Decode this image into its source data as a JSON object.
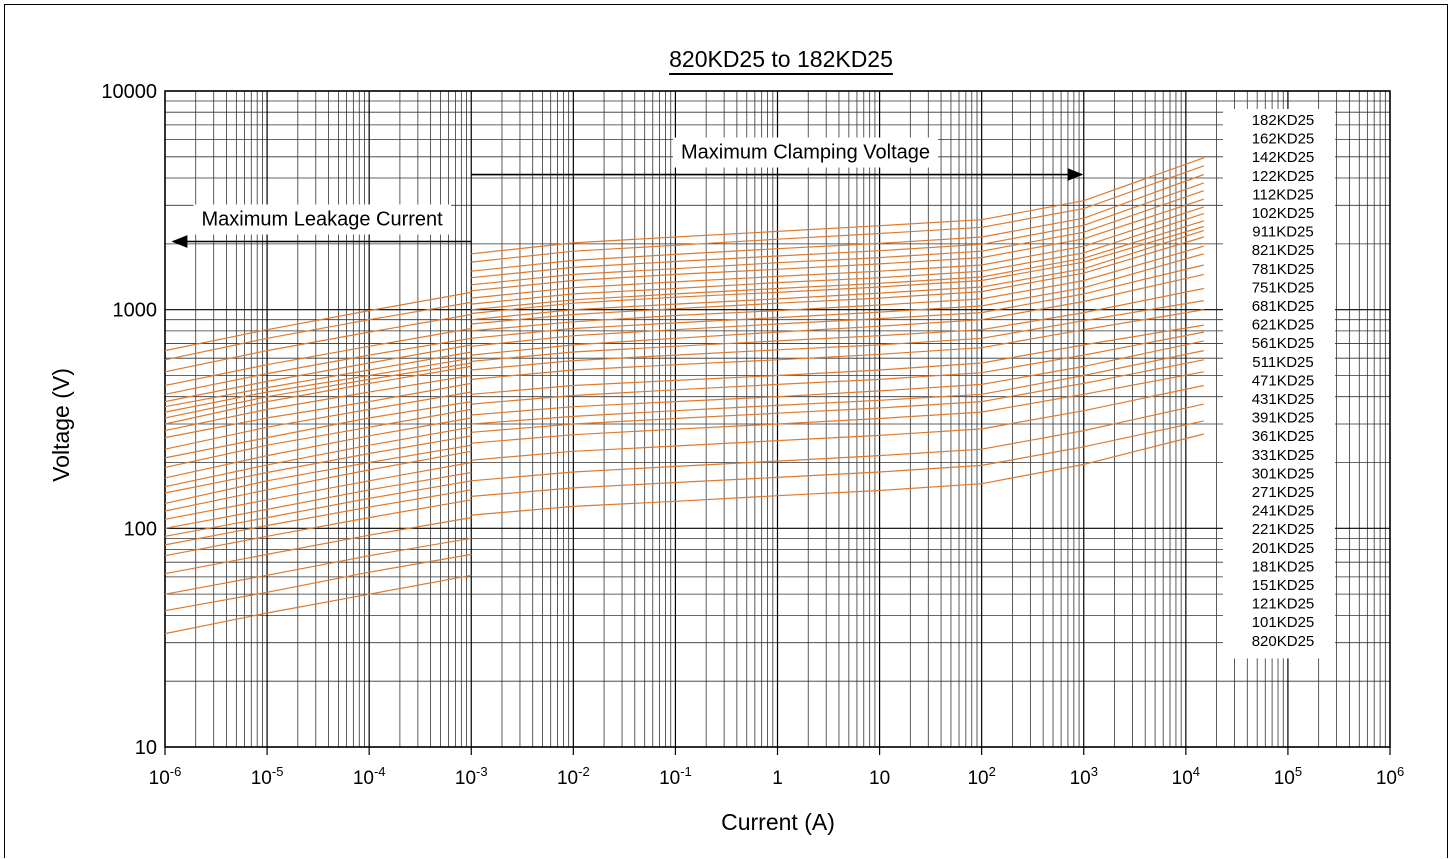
{
  "chart_data": {
    "type": "line",
    "title": "820KD25 to 182KD25",
    "xlabel": "Current (A)",
    "ylabel": "Voltage (V)",
    "x_scale": "log",
    "y_scale": "log",
    "xlim": [
      1e-06,
      1000000.0
    ],
    "ylim": [
      10,
      10000
    ],
    "grid": true,
    "legend_position": "right",
    "line_color": "#E07B2E",
    "x_ticks": [
      {
        "value": 1e-06,
        "base": "10",
        "exp": "-6"
      },
      {
        "value": 1e-05,
        "base": "10",
        "exp": "-5"
      },
      {
        "value": 0.0001,
        "base": "10",
        "exp": "-4"
      },
      {
        "value": 0.001,
        "base": "10",
        "exp": "-3"
      },
      {
        "value": 0.01,
        "base": "10",
        "exp": "-2"
      },
      {
        "value": 0.1,
        "base": "10",
        "exp": "-1"
      },
      {
        "value": 1,
        "base": "1",
        "exp": ""
      },
      {
        "value": 10,
        "base": "10",
        "exp": ""
      },
      {
        "value": 100,
        "base": "10",
        "exp": "2"
      },
      {
        "value": 1000,
        "base": "10",
        "exp": "3"
      },
      {
        "value": 10000,
        "base": "10",
        "exp": "4"
      },
      {
        "value": 100000,
        "base": "10",
        "exp": "5"
      },
      {
        "value": 1000000,
        "base": "10",
        "exp": "6"
      }
    ],
    "y_ticks": [
      {
        "value": 10,
        "label": "10"
      },
      {
        "value": 100,
        "label": "100"
      },
      {
        "value": 1000,
        "label": "1000"
      },
      {
        "value": 10000,
        "label": "10000"
      }
    ],
    "annotations": [
      {
        "text": "Maximum Leakage Current",
        "arrow_from": 0.001,
        "arrow_to": 1e-06,
        "arrow_v": 2050
      },
      {
        "text": "Maximum Clamping Voltage",
        "arrow_from": 0.001,
        "arrow_to": 1000,
        "arrow_v": 4150
      }
    ],
    "leakage_region_x": [
      1e-06,
      0.001
    ],
    "clamping_region_x": [
      0.001,
      15000
    ],
    "leakage_x": [
      1e-06,
      1e-05,
      0.0001,
      0.001
    ],
    "clamping_x": [
      0.001,
      0.01,
      0.1,
      1,
      10,
      100,
      1000,
      15000
    ],
    "series": [
      {
        "name": "182KD25",
        "leakage": [
          650,
          810,
          990,
          1200
        ],
        "clamping": [
          1800,
          2020,
          2150,
          2280,
          2420,
          2580,
          3150,
          4950
        ]
      },
      {
        "name": "162KD25",
        "leakage": [
          590,
          740,
          900,
          1080
        ],
        "clamping": [
          1650,
          1850,
          1970,
          2100,
          2230,
          2380,
          2900,
          4550
        ]
      },
      {
        "name": "142KD25",
        "leakage": [
          520,
          650,
          790,
          950
        ],
        "clamping": [
          1500,
          1680,
          1790,
          1900,
          2010,
          2150,
          2620,
          4150
        ]
      },
      {
        "name": "122KD25",
        "leakage": [
          450,
          560,
          680,
          820
        ],
        "clamping": [
          1400,
          1560,
          1660,
          1760,
          1860,
          1990,
          2430,
          3800
        ]
      },
      {
        "name": "112KD25",
        "leakage": [
          410,
          510,
          620,
          740
        ],
        "clamping": [
          1300,
          1450,
          1540,
          1640,
          1730,
          1850,
          2260,
          3500
        ]
      },
      {
        "name": "102KD25",
        "leakage": [
          380,
          470,
          570,
          690
        ],
        "clamping": [
          1220,
          1360,
          1450,
          1530,
          1620,
          1730,
          2110,
          3200
        ]
      },
      {
        "name": "911KD25",
        "leakage": [
          360,
          440,
          530,
          640
        ],
        "clamping": [
          1130,
          1260,
          1340,
          1420,
          1500,
          1600,
          1950,
          2950
        ]
      },
      {
        "name": "821KD25",
        "leakage": [
          340,
          420,
          500,
          600
        ],
        "clamping": [
          1060,
          1180,
          1250,
          1330,
          1400,
          1500,
          1820,
          2750
        ]
      },
      {
        "name": "781KD25",
        "leakage": [
          320,
          400,
          480,
          570
        ],
        "clamping": [
          1000,
          1110,
          1180,
          1250,
          1320,
          1410,
          1720,
          2550
        ]
      },
      {
        "name": "751KD25",
        "leakage": [
          300,
          380,
          460,
          550
        ],
        "clamping": [
          960,
          1070,
          1140,
          1200,
          1270,
          1360,
          1650,
          2400
        ]
      },
      {
        "name": "681KD25",
        "leakage": [
          280,
          350,
          420,
          500
        ],
        "clamping": [
          900,
          1000,
          1060,
          1120,
          1190,
          1270,
          1540,
          2300
        ]
      },
      {
        "name": "621KD25",
        "leakage": [
          260,
          320,
          380,
          460
        ],
        "clamping": [
          860,
          950,
          1010,
          1070,
          1130,
          1210,
          1470,
          2150
        ]
      },
      {
        "name": "561KD25",
        "leakage": [
          230,
          290,
          350,
          420
        ],
        "clamping": [
          800,
          880,
          940,
          990,
          1050,
          1120,
          1360,
          1950
        ]
      },
      {
        "name": "511KD25",
        "leakage": [
          210,
          260,
          320,
          380
        ],
        "clamping": [
          740,
          820,
          870,
          920,
          975,
          1040,
          1260,
          1800
        ]
      },
      {
        "name": "471KD25",
        "leakage": [
          190,
          240,
          290,
          350
        ],
        "clamping": [
          680,
          760,
          810,
          860,
          910,
          970,
          1180,
          1600
        ]
      },
      {
        "name": "431KD25",
        "leakage": [
          170,
          215,
          265,
          320
        ],
        "clamping": [
          620,
          690,
          740,
          790,
          840,
          900,
          1090,
          1450
        ]
      },
      {
        "name": "391KD25",
        "leakage": [
          155,
          195,
          240,
          290
        ],
        "clamping": [
          580,
          640,
          680,
          720,
          760,
          810,
          970,
          1250
        ]
      },
      {
        "name": "361KD25",
        "leakage": [
          145,
          180,
          220,
          265
        ],
        "clamping": [
          530,
          585,
          620,
          655,
          690,
          740,
          890,
          1100
        ]
      },
      {
        "name": "331KD25",
        "leakage": [
          130,
          165,
          200,
          240
        ],
        "clamping": [
          480,
          530,
          560,
          590,
          625,
          670,
          810,
          1000
        ]
      },
      {
        "name": "301KD25",
        "leakage": [
          120,
          150,
          185,
          225
        ],
        "clamping": [
          410,
          450,
          475,
          500,
          530,
          570,
          690,
          850
        ]
      },
      {
        "name": "271KD25",
        "leakage": [
          110,
          135,
          165,
          200
        ],
        "clamping": [
          370,
          405,
          430,
          455,
          480,
          515,
          620,
          790
        ]
      },
      {
        "name": "241KD25",
        "leakage": [
          100,
          122,
          150,
          180
        ],
        "clamping": [
          330,
          360,
          380,
          400,
          425,
          455,
          550,
          720
        ]
      },
      {
        "name": "221KD25",
        "leakage": [
          92,
          112,
          137,
          165
        ],
        "clamping": [
          300,
          325,
          345,
          365,
          385,
          410,
          500,
          650
        ]
      },
      {
        "name": "201KD25",
        "leakage": [
          84,
          103,
          125,
          150
        ],
        "clamping": [
          275,
          300,
          318,
          336,
          355,
          380,
          460,
          590
        ]
      },
      {
        "name": "181KD25",
        "leakage": [
          75,
          92,
          112,
          135
        ],
        "clamping": [
          245,
          268,
          284,
          300,
          318,
          340,
          410,
          520
        ]
      },
      {
        "name": "151KD25",
        "leakage": [
          62,
          76,
          93,
          112
        ],
        "clamping": [
          205,
          225,
          238,
          252,
          266,
          285,
          345,
          450
        ]
      },
      {
        "name": "121KD25",
        "leakage": [
          50,
          61,
          75,
          90
        ],
        "clamping": [
          165,
          181,
          192,
          203,
          215,
          230,
          280,
          370
        ]
      },
      {
        "name": "101KD25",
        "leakage": [
          42,
          51,
          63,
          76
        ],
        "clamping": [
          140,
          153,
          162,
          171,
          181,
          194,
          236,
          310
        ]
      },
      {
        "name": "820KD25",
        "leakage": [
          33,
          41,
          50,
          61
        ],
        "clamping": [
          115,
          126,
          133,
          141,
          149,
          160,
          196,
          270
        ]
      }
    ]
  }
}
